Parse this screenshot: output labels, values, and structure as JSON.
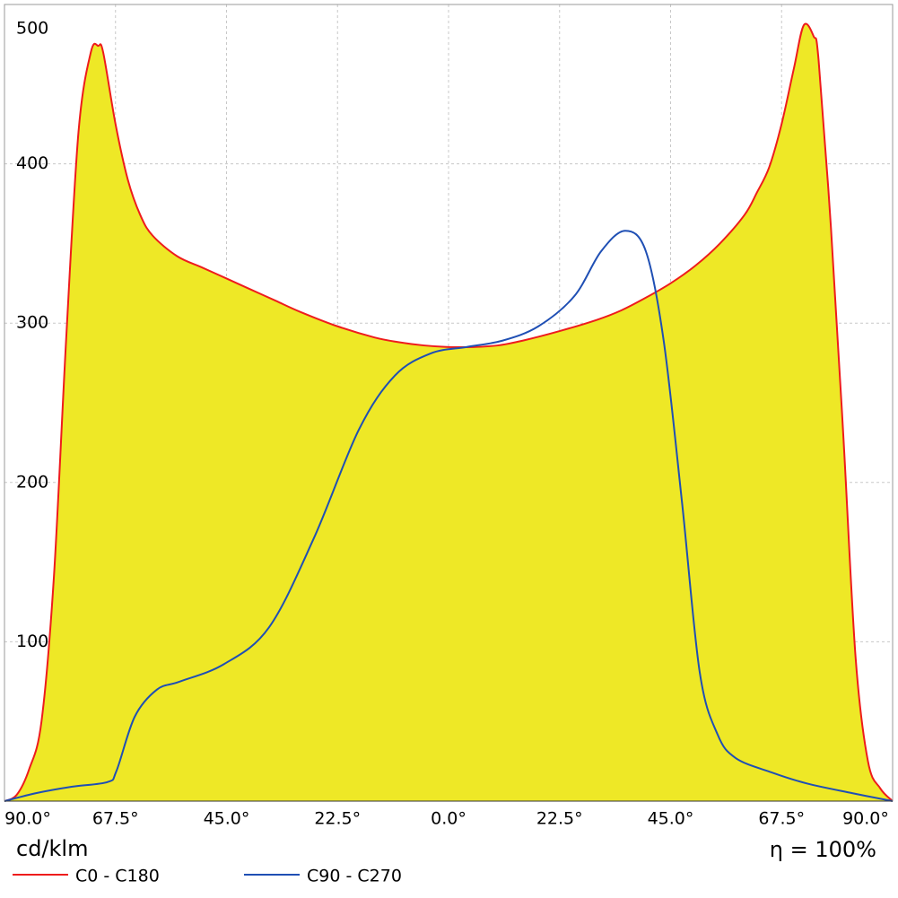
{
  "chart_data": {
    "type": "line",
    "y_unit": "cd/klm",
    "annotation": "η = 100%",
    "xlim": [
      -90,
      90
    ],
    "ylim": [
      0,
      500
    ],
    "xticks": [
      {
        "value": -90,
        "label": "90.0°"
      },
      {
        "value": -67.5,
        "label": "67.5°"
      },
      {
        "value": -45,
        "label": "45.0°"
      },
      {
        "value": -22.5,
        "label": "22.5°"
      },
      {
        "value": 0,
        "label": "0.0°"
      },
      {
        "value": 22.5,
        "label": "22.5°"
      },
      {
        "value": 45,
        "label": "45.0°"
      },
      {
        "value": 67.5,
        "label": "67.5°"
      },
      {
        "value": 90,
        "label": "90.0°"
      }
    ],
    "yticks": [
      100,
      200,
      300,
      400,
      500
    ],
    "grid": true,
    "fill_color": "#eee826",
    "series": [
      {
        "name": "C0 - C180",
        "color": "#ee1c1c",
        "filled": true,
        "x": [
          -90,
          -87.5,
          -85,
          -82.5,
          -80,
          -77.5,
          -75,
          -72.5,
          -71,
          -70,
          -67.5,
          -65,
          -62.5,
          -60,
          -55,
          -50,
          -45,
          -40,
          -35,
          -30,
          -22.5,
          -15,
          -10,
          -5,
          0,
          5,
          10,
          15,
          22.5,
          30,
          35,
          40,
          45,
          50,
          55,
          60,
          62.5,
          65,
          67.5,
          70,
          72,
          74,
          75,
          77.5,
          80,
          82.5,
          85,
          87.5,
          90
        ],
        "values": [
          0,
          4,
          20,
          50,
          140,
          290,
          420,
          470,
          474,
          470,
          425,
          390,
          368,
          355,
          342,
          335,
          328,
          321,
          314,
          307,
          298,
          291,
          288,
          286,
          285,
          285,
          286,
          289,
          295,
          302,
          308,
          316,
          325,
          336,
          350,
          368,
          382,
          398,
          425,
          460,
          487,
          480,
          465,
          360,
          230,
          90,
          25,
          8,
          0
        ]
      },
      {
        "name": "C90 - C270",
        "color": "#1f4fb4",
        "filled": false,
        "x": [
          -90,
          -83.6,
          -76.4,
          -69.1,
          -67.3,
          -63.6,
          -59.1,
          -54.5,
          -45.5,
          -36.4,
          -27.3,
          -18.2,
          -10.9,
          -3.6,
          3.6,
          10.9,
          18.2,
          25.5,
          30.9,
          35.8,
          40,
          43.6,
          47.3,
          50.9,
          54.5,
          58.2,
          65.5,
          72.7,
          81.8,
          90
        ],
        "values": [
          0,
          5,
          9,
          12,
          19,
          53,
          70,
          75,
          86,
          109,
          165,
          233,
          267,
          281,
          285,
          289,
          298,
          317,
          345,
          358,
          345,
          289,
          188,
          81,
          42,
          27,
          18,
          11,
          5,
          0
        ]
      }
    ]
  }
}
